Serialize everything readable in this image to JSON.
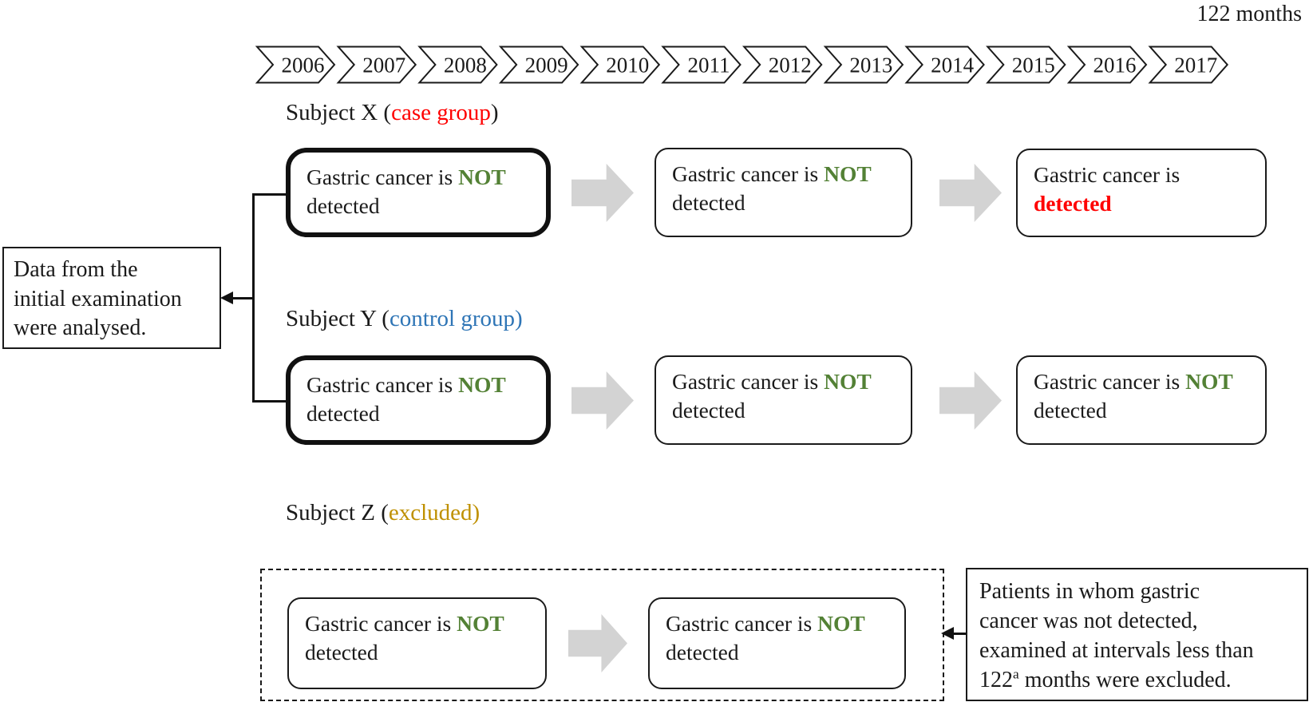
{
  "months_label": "122 months",
  "timeline": {
    "years": [
      "2006",
      "2007",
      "2008",
      "2009",
      "2010",
      "2011",
      "2012",
      "2013",
      "2014",
      "2015",
      "2016",
      "2017"
    ]
  },
  "colors": {
    "case_group": "#ff0000",
    "control_group": "#2e75b6",
    "excluded": "#bf9000",
    "not_keyword": "#538135",
    "detected_keyword": "#ff0000",
    "flow_arrow": "#d3d3d3"
  },
  "left_note": {
    "lines": [
      "Data from the",
      "initial examination",
      "were analysed."
    ]
  },
  "subjects": [
    {
      "label_prefix": "Subject X (",
      "group": "case group",
      "label_close": ")",
      "boxes": [
        {
          "pre": "Gastric cancer is ",
          "keyword": "NOT",
          "rest": " detected"
        },
        {
          "pre": "Gastric cancer is ",
          "keyword": "NOT",
          "rest": " detected"
        },
        {
          "pre": "Gastric cancer is ",
          "keyword": "detected",
          "rest": ""
        }
      ]
    },
    {
      "label_prefix": "Subject Y (",
      "group": "control group",
      "label_close": ")",
      "boxes": [
        {
          "pre": "Gastric cancer is ",
          "keyword": "NOT",
          "rest": " detected"
        },
        {
          "pre": "Gastric cancer is ",
          "keyword": "NOT",
          "rest": " detected"
        },
        {
          "pre": "Gastric cancer is ",
          "keyword": "NOT",
          "rest": " detected"
        }
      ]
    },
    {
      "label_prefix": "Subject Z (",
      "group": "excluded",
      "label_close": ")",
      "boxes": [
        {
          "pre": "Gastric cancer is ",
          "keyword": "NOT",
          "rest": " detected"
        },
        {
          "pre": "Gastric cancer is ",
          "keyword": "NOT",
          "rest": " detected"
        }
      ]
    }
  ],
  "exclusion_note": {
    "lines": [
      "Patients in whom gastric",
      "cancer was not detected,",
      "examined at intervals less than"
    ],
    "last": {
      "pre": "122",
      "sup": "a",
      "post": " months were excluded."
    }
  }
}
